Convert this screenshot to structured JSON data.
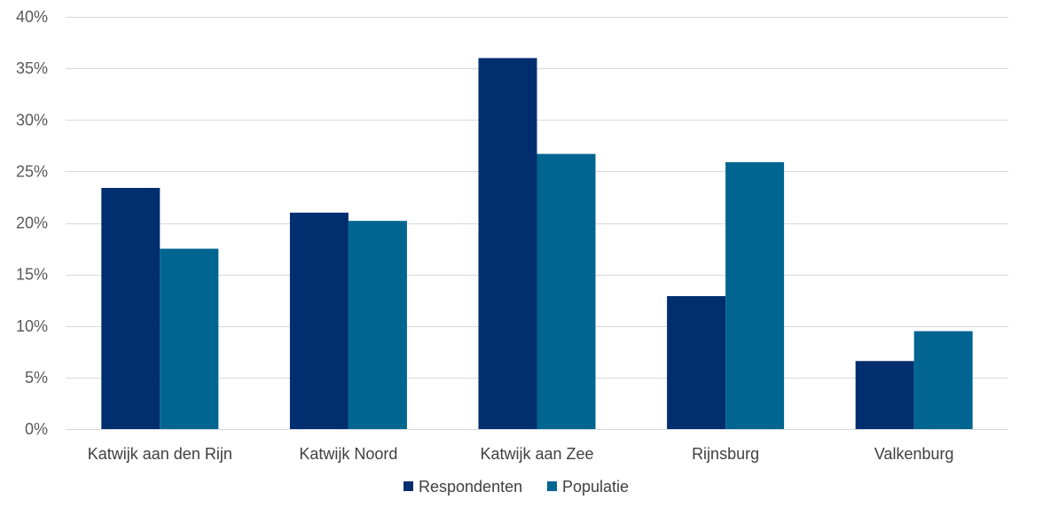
{
  "chart_data": {
    "type": "bar",
    "categories": [
      "Katwijk aan den Rijn",
      "Katwijk Noord",
      "Katwijk aan Zee",
      "Rijnsburg",
      "Valkenburg"
    ],
    "series": [
      {
        "name": "Respondenten",
        "color": "#002e6e",
        "values": [
          23.4,
          21.0,
          36.0,
          12.9,
          6.6
        ]
      },
      {
        "name": "Populatie",
        "color": "#006591",
        "values": [
          17.5,
          20.2,
          26.7,
          25.9,
          9.5
        ]
      }
    ],
    "ylim": [
      0,
      40
    ],
    "yticks": [
      "0%",
      "5%",
      "10%",
      "15%",
      "20%",
      "25%",
      "30%",
      "35%",
      "40%"
    ],
    "ytick_values": [
      0,
      5,
      10,
      15,
      20,
      25,
      30,
      35,
      40
    ],
    "grid": true,
    "legend_position": "bottom",
    "gridline_color": "#d9d9d9"
  }
}
